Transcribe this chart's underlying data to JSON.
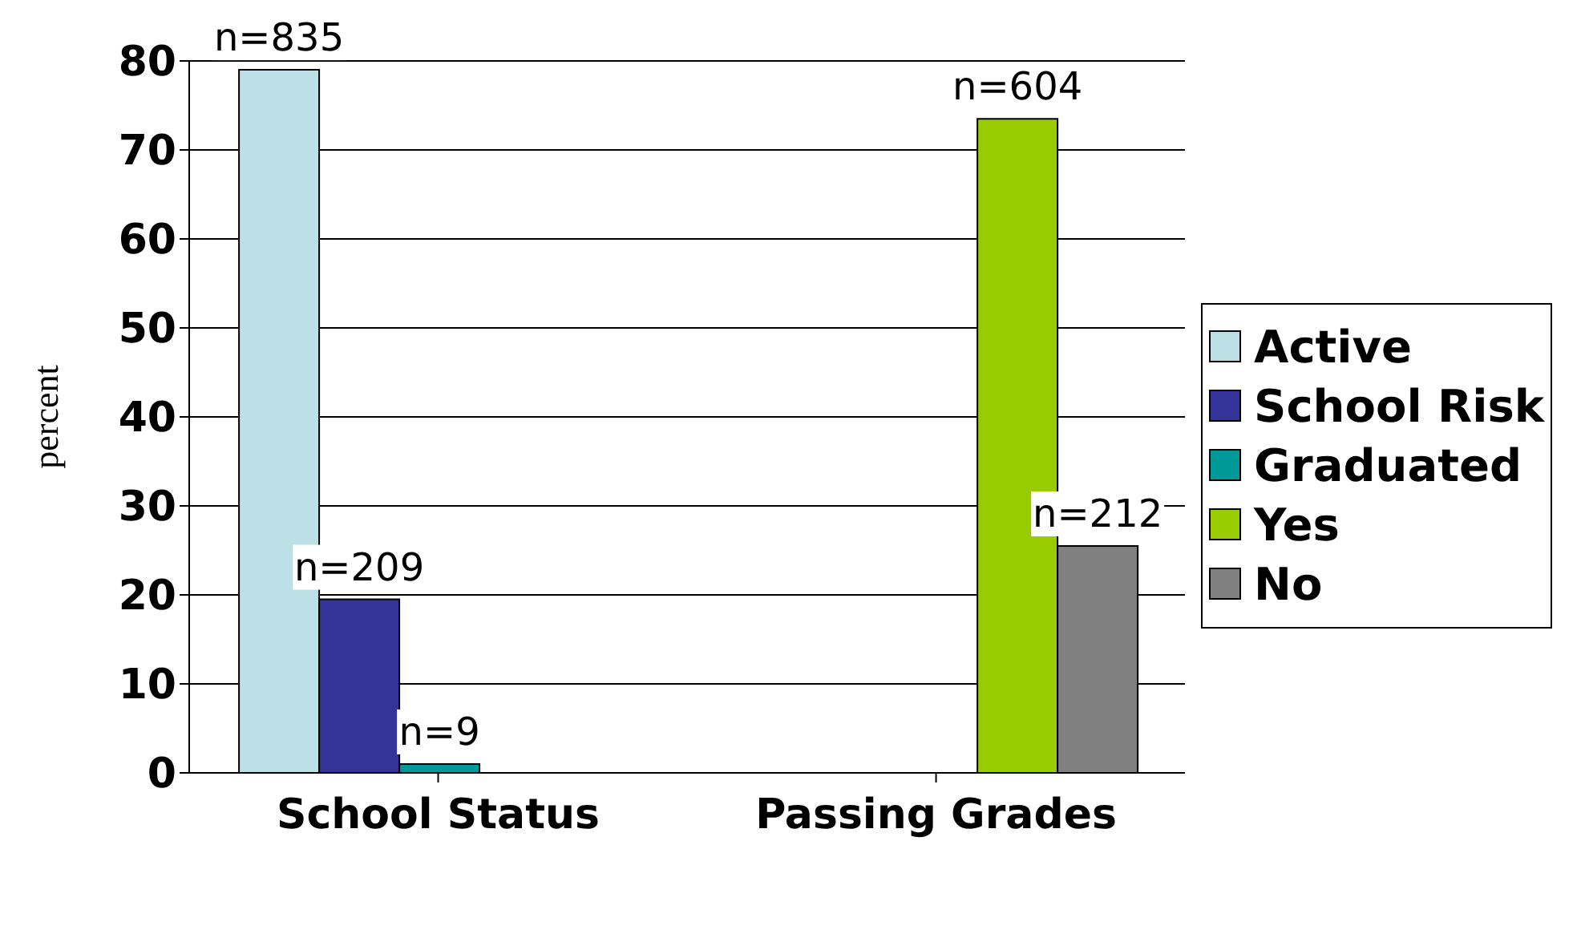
{
  "chart_data": {
    "type": "bar",
    "ylabel": "percent",
    "categories": [
      "School Status",
      "Passing Grades"
    ],
    "series": [
      {
        "name": "Active",
        "color": "#bde0e6",
        "values": [
          79,
          null
        ]
      },
      {
        "name": "School Risk",
        "color": "#333399",
        "values": [
          19.5,
          null
        ]
      },
      {
        "name": "Graduated",
        "color": "#009999",
        "values": [
          1,
          null
        ]
      },
      {
        "name": "Yes",
        "color": "#99cc00",
        "values": [
          null,
          73.5
        ]
      },
      {
        "name": "No",
        "color": "#808080",
        "values": [
          null,
          25.5
        ]
      }
    ],
    "annotations": [
      "n=835",
      "n=209",
      "n=9",
      "n=604",
      "n=212"
    ],
    "ylim": [
      0,
      80
    ],
    "yticks": [
      0,
      10,
      20,
      30,
      40,
      50,
      60,
      70,
      80
    ],
    "grid": "y",
    "legend": "right"
  }
}
